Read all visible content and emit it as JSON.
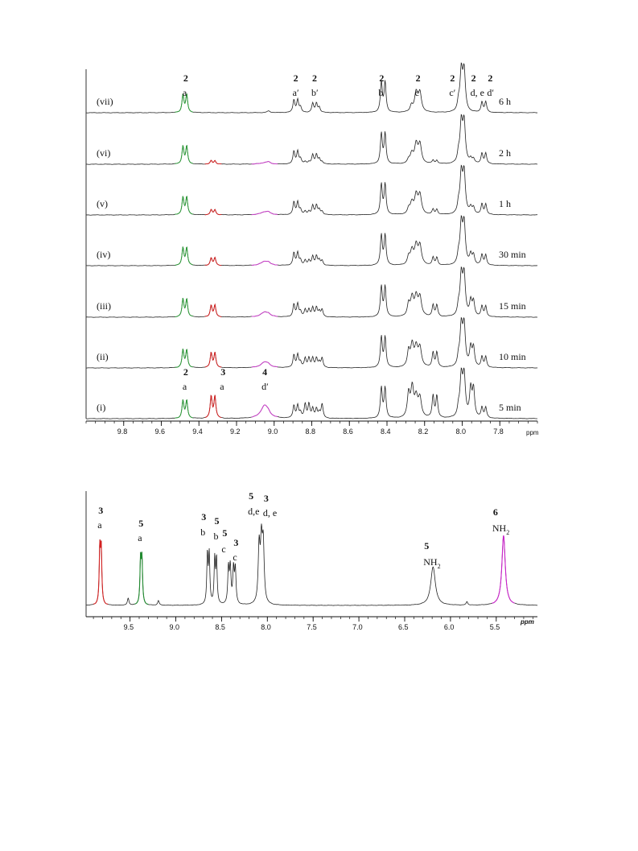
{
  "chart_data": [
    {
      "type": "line",
      "title": "",
      "xlabel": "ppm",
      "xlim": [
        10.0,
        7.6
      ],
      "x_reversed": true,
      "x_ticks": [
        "9.8",
        "9.6",
        "9.4",
        "9.2",
        "9.0",
        "8.8",
        "8.6",
        "8.4",
        "8.2",
        "8.0",
        "7.8"
      ],
      "grid": false,
      "spectra": [
        {
          "label": "(vii)",
          "time": "6 h",
          "compound3": 0.0,
          "compound4": 0.0
        },
        {
          "label": "(vi)",
          "time": "2 h",
          "compound3": 0.15,
          "compound4": 0.04
        },
        {
          "label": "(v)",
          "time": "1 h",
          "compound3": 0.22,
          "compound4": 0.08
        },
        {
          "label": "(iv)",
          "time": "30 min",
          "compound3": 0.33,
          "compound4": 0.11
        },
        {
          "label": "(iii)",
          "time": "15 min",
          "compound3": 0.5,
          "compound4": 0.13
        },
        {
          "label": "(ii)",
          "time": "10 min",
          "compound3": 0.64,
          "compound4": 0.15
        },
        {
          "label": "(i)",
          "time": "5 min",
          "compound3": 0.95,
          "compound4": 0.35
        }
      ],
      "peaks": [
        {
          "id": "2a",
          "compound": "2",
          "ppm": 9.47,
          "multiplicity": "d",
          "color": "#2e9e3a",
          "height": 0.42
        },
        {
          "id": "3a",
          "compound": "3",
          "ppm": 9.32,
          "multiplicity": "d",
          "color": "#d42020",
          "height": 0.28
        },
        {
          "id": "4d'",
          "compound": "4",
          "ppm": 9.05,
          "multiplicity": "broad",
          "color": "#cc3fcc",
          "height": 0.2
        },
        {
          "id": "2a'",
          "compound": "2",
          "ppm": 8.88,
          "multiplicity": "m",
          "color": "#222222",
          "height": 0.28
        },
        {
          "id": "2b'",
          "compound": "2",
          "ppm": 8.78,
          "multiplicity": "m",
          "color": "#222222",
          "height": 0.24
        },
        {
          "id": "2b",
          "compound": "2",
          "ppm": 8.42,
          "multiplicity": "d",
          "color": "#222222",
          "height": 0.75
        },
        {
          "id": "2c",
          "compound": "2",
          "ppm": 8.23,
          "multiplicity": "m",
          "color": "#222222",
          "height": 0.5
        },
        {
          "id": "2c'/d,e",
          "compound": "2",
          "ppm": 7.99,
          "multiplicity": "m",
          "color": "#222222",
          "height": 1.0
        },
        {
          "id": "2d'",
          "compound": "2",
          "ppm": 7.88,
          "multiplicity": "d",
          "color": "#222222",
          "height": 0.3
        }
      ],
      "labels": {
        "top": [
          {
            "num": "2",
            "sub": "a"
          },
          {
            "num": "2",
            "sub": "a′"
          },
          {
            "num": "2",
            "sub": "b′"
          },
          {
            "num": "2",
            "sub": "b"
          },
          {
            "num": "2",
            "sub": "c"
          },
          {
            "num": "2",
            "sub": "c′"
          },
          {
            "num": "2",
            "sub": "d, e"
          },
          {
            "num": "2",
            "sub": "d′"
          }
        ],
        "bottom": [
          {
            "num": "2",
            "sub": "a"
          },
          {
            "num": "3",
            "sub": "a"
          },
          {
            "num": "4",
            "sub": "d′"
          }
        ]
      }
    },
    {
      "type": "line",
      "title": "",
      "xlabel": "ppm",
      "xlim": [
        10.0,
        5.0
      ],
      "x_reversed": true,
      "x_ticks": [
        "9.5",
        "9.0",
        "8.5",
        "8.0",
        "7.5",
        "7.0",
        "6.5",
        "6.0",
        "5.5"
      ],
      "grid": false,
      "peaks": [
        {
          "id": "3a",
          "compound": "3",
          "ppm": 9.82,
          "height": 0.73,
          "color": "#d42020"
        },
        {
          "id": "5a",
          "compound": "5",
          "ppm": 9.38,
          "height": 0.6,
          "color": "#1f8a2e"
        },
        {
          "id": "3b",
          "compound": "3",
          "ppm": 8.64,
          "height": 0.6,
          "color": "#222222"
        },
        {
          "id": "5b",
          "compound": "5",
          "ppm": 8.57,
          "height": 0.56,
          "color": "#222222"
        },
        {
          "id": "5c",
          "compound": "5",
          "ppm": 8.41,
          "height": 0.45,
          "color": "#222222"
        },
        {
          "id": "3c",
          "compound": "3",
          "ppm": 8.36,
          "height": 0.44,
          "color": "#222222"
        },
        {
          "id": "5de",
          "compound": "5",
          "ppm": 8.07,
          "height": 1.0,
          "color": "#222222"
        },
        {
          "id": "5NH2",
          "compound": "5",
          "ppm": 6.19,
          "height": 0.33,
          "color": "#222222"
        },
        {
          "id": "6NH2",
          "compound": "6",
          "ppm": 5.42,
          "height": 0.6,
          "color": "#cc22cc"
        }
      ],
      "labels": [
        {
          "num": "3",
          "sub": "a"
        },
        {
          "num": "5",
          "sub": "a"
        },
        {
          "num": "3",
          "sub": "b"
        },
        {
          "num": "5",
          "sub": "b"
        },
        {
          "num": "5",
          "sub": "c"
        },
        {
          "num": "3",
          "sub": "c"
        },
        {
          "num": "5",
          "sub": "d,e"
        },
        {
          "num": "3",
          "sub": "d, e"
        },
        {
          "num": "5",
          "sub": "NH",
          "subscript": "2"
        },
        {
          "num": "6",
          "sub": "NH",
          "subscript": "2"
        }
      ]
    }
  ]
}
